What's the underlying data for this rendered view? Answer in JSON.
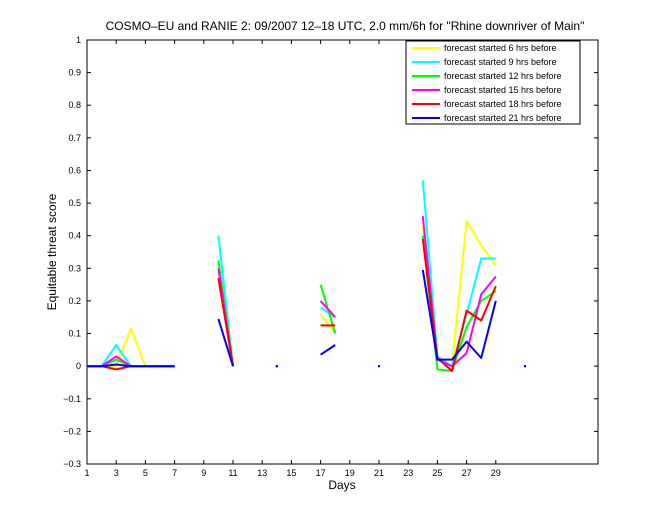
{
  "chart_data": {
    "type": "line",
    "title": "COSMO–EU and RANIE 2: 09/2007 12–18 UTC, 2.0 mm/6h for \"Rhine downriver of Main\"",
    "xlabel": "Days",
    "ylabel": "Equitable threat score",
    "xlim": [
      1,
      36
    ],
    "ylim": [
      -0.3,
      1
    ],
    "xticks": [
      1,
      3,
      5,
      7,
      9,
      11,
      13,
      15,
      17,
      19,
      21,
      23,
      25,
      27,
      29
    ],
    "yticks": [
      -0.3,
      -0.2,
      -0.1,
      0,
      0.1,
      0.2,
      0.3,
      0.4,
      0.5,
      0.6,
      0.7,
      0.8,
      0.9,
      1
    ],
    "ytick_labels": [
      "−0.3",
      "−0.2",
      "−0.1",
      "0",
      "0.1",
      "0.2",
      "0.3",
      "0.4",
      "0.5",
      "0.6",
      "0.7",
      "0.8",
      "0.9",
      "1"
    ],
    "grid": false,
    "legend_position": "top-right",
    "series": [
      {
        "name": "forecast started 6 hrs before",
        "color": "#ffff00",
        "segments": [
          [
            [
              1,
              0
            ],
            [
              2,
              0
            ],
            [
              3,
              0
            ],
            [
              4,
              0.115
            ],
            [
              5,
              0
            ],
            [
              6,
              0
            ],
            [
              7,
              0
            ]
          ],
          [
            [
              10,
              0.32
            ],
            [
              11,
              0
            ]
          ],
          [
            [
              17,
              0.16
            ],
            [
              18,
              0.1
            ]
          ],
          [
            [
              24,
              0.43
            ],
            [
              25,
              0.02
            ],
            [
              26,
              0
            ],
            [
              27,
              0.445
            ],
            [
              28,
              0.37
            ],
            [
              29,
              0.31
            ]
          ]
        ],
        "points": [
          [
            14,
            0
          ],
          [
            21,
            0
          ],
          [
            31,
            0
          ]
        ]
      },
      {
        "name": "forecast started 9 hrs before",
        "color": "#00ffff",
        "segments": [
          [
            [
              1,
              0
            ],
            [
              2,
              0
            ],
            [
              3,
              0.065
            ],
            [
              4,
              0
            ],
            [
              5,
              0
            ],
            [
              6,
              0
            ],
            [
              7,
              0
            ]
          ],
          [
            [
              10,
              0.4
            ],
            [
              11,
              0
            ]
          ],
          [
            [
              17,
              0.18
            ],
            [
              18,
              0.15
            ]
          ],
          [
            [
              24,
              0.57
            ],
            [
              25,
              0.03
            ],
            [
              26,
              0
            ],
            [
              27,
              0.16
            ],
            [
              28,
              0.33
            ],
            [
              29,
              0.33
            ]
          ]
        ],
        "points": [
          [
            14,
            0
          ],
          [
            21,
            0
          ],
          [
            31,
            0
          ]
        ]
      },
      {
        "name": "forecast started 12 hrs before",
        "color": "#00ff00",
        "segments": [
          [
            [
              1,
              0
            ],
            [
              2,
              0
            ],
            [
              3,
              0.02
            ],
            [
              4,
              0
            ],
            [
              5,
              0
            ],
            [
              6,
              0
            ],
            [
              7,
              0
            ]
          ],
          [
            [
              10,
              0.325
            ],
            [
              11,
              0
            ]
          ],
          [
            [
              17,
              0.25
            ],
            [
              18,
              0.1
            ]
          ],
          [
            [
              24,
              0.4
            ],
            [
              25,
              -0.01
            ],
            [
              26,
              -0.015
            ],
            [
              27,
              0.12
            ],
            [
              28,
              0.2
            ],
            [
              29,
              0.23
            ]
          ]
        ],
        "points": [
          [
            14,
            0
          ],
          [
            21,
            0
          ],
          [
            31,
            0
          ]
        ]
      },
      {
        "name": "forecast started 15 hrs before",
        "color": "#ff00ff",
        "segments": [
          [
            [
              1,
              0
            ],
            [
              2,
              0
            ],
            [
              3,
              0.03
            ],
            [
              4,
              0
            ],
            [
              5,
              0
            ],
            [
              6,
              0
            ],
            [
              7,
              0
            ]
          ],
          [
            [
              10,
              0.3
            ],
            [
              11,
              0
            ]
          ],
          [
            [
              17,
              0.2
            ],
            [
              18,
              0.15
            ]
          ],
          [
            [
              24,
              0.46
            ],
            [
              25,
              0.02
            ],
            [
              26,
              0
            ],
            [
              27,
              0.04
            ],
            [
              28,
              0.22
            ],
            [
              29,
              0.275
            ]
          ]
        ],
        "points": [
          [
            14,
            0
          ],
          [
            21,
            0
          ],
          [
            31,
            0
          ]
        ]
      },
      {
        "name": "forecast started 18 hrs before",
        "color": "#ff0000",
        "segments": [
          [
            [
              1,
              0
            ],
            [
              2,
              0
            ],
            [
              3,
              -0.01
            ],
            [
              4,
              0
            ],
            [
              5,
              0
            ],
            [
              6,
              0
            ],
            [
              7,
              0
            ]
          ],
          [
            [
              10,
              0.27
            ],
            [
              11,
              0
            ]
          ],
          [
            [
              17,
              0.125
            ],
            [
              18,
              0.125
            ]
          ],
          [
            [
              24,
              0.39
            ],
            [
              25,
              0.025
            ],
            [
              26,
              -0.015
            ],
            [
              27,
              0.17
            ],
            [
              28,
              0.14
            ],
            [
              29,
              0.245
            ]
          ]
        ],
        "points": [
          [
            14,
            0
          ],
          [
            21,
            0
          ],
          [
            31,
            0
          ]
        ]
      },
      {
        "name": "forecast started 21 hrs before",
        "color": "#0000ff",
        "segments": [
          [
            [
              1,
              0
            ],
            [
              2,
              0
            ],
            [
              3,
              0.005
            ],
            [
              4,
              0
            ],
            [
              5,
              0
            ],
            [
              6,
              0
            ],
            [
              7,
              0
            ]
          ],
          [
            [
              10,
              0.145
            ],
            [
              11,
              0
            ]
          ],
          [
            [
              17,
              0.035
            ],
            [
              18,
              0.065
            ]
          ],
          [
            [
              24,
              0.295
            ],
            [
              25,
              0.02
            ],
            [
              26,
              0.02
            ],
            [
              27,
              0.075
            ],
            [
              28,
              0.025
            ],
            [
              29,
              0.2
            ]
          ]
        ],
        "points": [
          [
            14,
            0
          ],
          [
            21,
            0
          ],
          [
            31,
            0
          ]
        ]
      }
    ]
  }
}
